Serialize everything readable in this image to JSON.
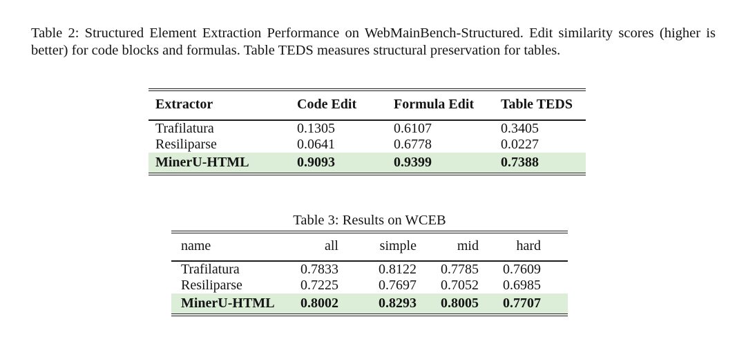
{
  "document": {
    "text_color": "#141414",
    "rule_color": "#1a1a1a",
    "highlight_color": "#dcedd8",
    "captions": {
      "table2": "Table 2: Structured Element Extraction Performance on WebMainBench-Structured. Edit similarity scores (higher is better) for code blocks and formulas. Table TEDS measures structural preservation for tables.",
      "table3": "Table 3: Results on WCEB"
    },
    "tables": [
      {
        "name": "structured-element-extraction-table",
        "columns": [
          "Extractor",
          "Code Edit",
          "Formula Edit",
          "Table TEDS"
        ],
        "rows": [
          {
            "cells": [
              "Trafilatura",
              "0.1305",
              "0.6107",
              "0.3405"
            ],
            "highlight": false
          },
          {
            "cells": [
              "Resiliparse",
              "0.0641",
              "0.6778",
              "0.0227"
            ],
            "highlight": false
          },
          {
            "cells": [
              "MinerU-HTML",
              "0.9093",
              "0.9399",
              "0.7388"
            ],
            "highlight": true
          }
        ]
      },
      {
        "name": "wceb-results-table",
        "columns": [
          "name",
          "all",
          "simple",
          "mid",
          "hard"
        ],
        "rows": [
          {
            "cells": [
              "Trafilatura",
              "0.7833",
              "0.8122",
              "0.7785",
              "0.7609"
            ],
            "highlight": false
          },
          {
            "cells": [
              "Resiliparse",
              "0.7225",
              "0.7697",
              "0.7052",
              "0.6985"
            ],
            "highlight": false
          },
          {
            "cells": [
              "MinerU-HTML",
              "0.8002",
              "0.8293",
              "0.8005",
              "0.7707"
            ],
            "highlight": true
          }
        ]
      }
    ]
  }
}
